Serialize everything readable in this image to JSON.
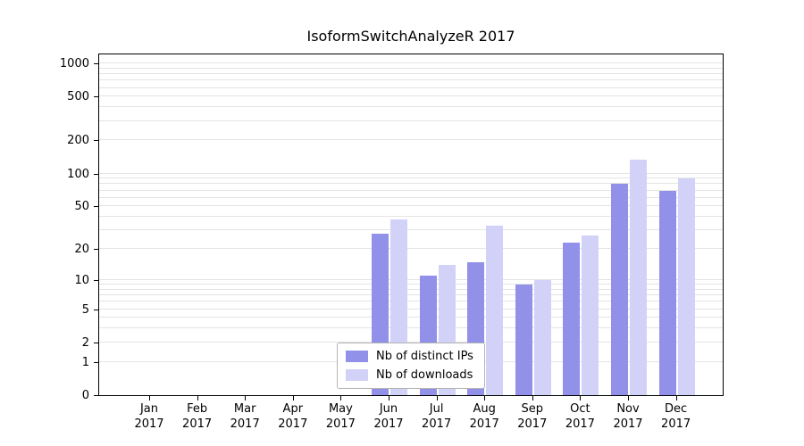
{
  "title": "IsoformSwitchAnalyzeR 2017",
  "chart_data": {
    "type": "bar",
    "title": "IsoformSwitchAnalyzeR 2017",
    "y_scale": "log10(value+1)",
    "ylim": [
      0,
      1000
    ],
    "categories": [
      "Jan",
      "Feb",
      "Mar",
      "Apr",
      "May",
      "Jun",
      "Jul",
      "Aug",
      "Sep",
      "Oct",
      "Nov",
      "Dec"
    ],
    "year": "2017",
    "y_tick_values": [
      0,
      1,
      2,
      5,
      10,
      20,
      50,
      100,
      200,
      500,
      1000
    ],
    "y_tick_labels": [
      "0",
      "1",
      "2",
      "5",
      "10",
      "20",
      "50",
      "100",
      "200",
      "500",
      "1000"
    ],
    "grid_values": [
      1,
      2,
      3,
      4,
      5,
      6,
      7,
      8,
      9,
      10,
      20,
      30,
      40,
      50,
      60,
      70,
      80,
      90,
      100,
      200,
      300,
      400,
      500,
      600,
      700,
      800,
      900,
      1000
    ],
    "grid_color": "#e4e4e4",
    "background": "#ffffff",
    "legend_position": "bottom-center-inside",
    "series": [
      {
        "name": "Nb of distinct IPs",
        "color": "#9191ea",
        "values": [
          0,
          0,
          0,
          0,
          0,
          28,
          11,
          15,
          9,
          23,
          80,
          70
        ]
      },
      {
        "name": "Nb of downloads",
        "color": "#d2d2f8",
        "values": [
          0,
          0,
          0,
          0,
          0,
          38,
          14,
          33,
          10,
          27,
          135,
          90
        ]
      }
    ]
  }
}
